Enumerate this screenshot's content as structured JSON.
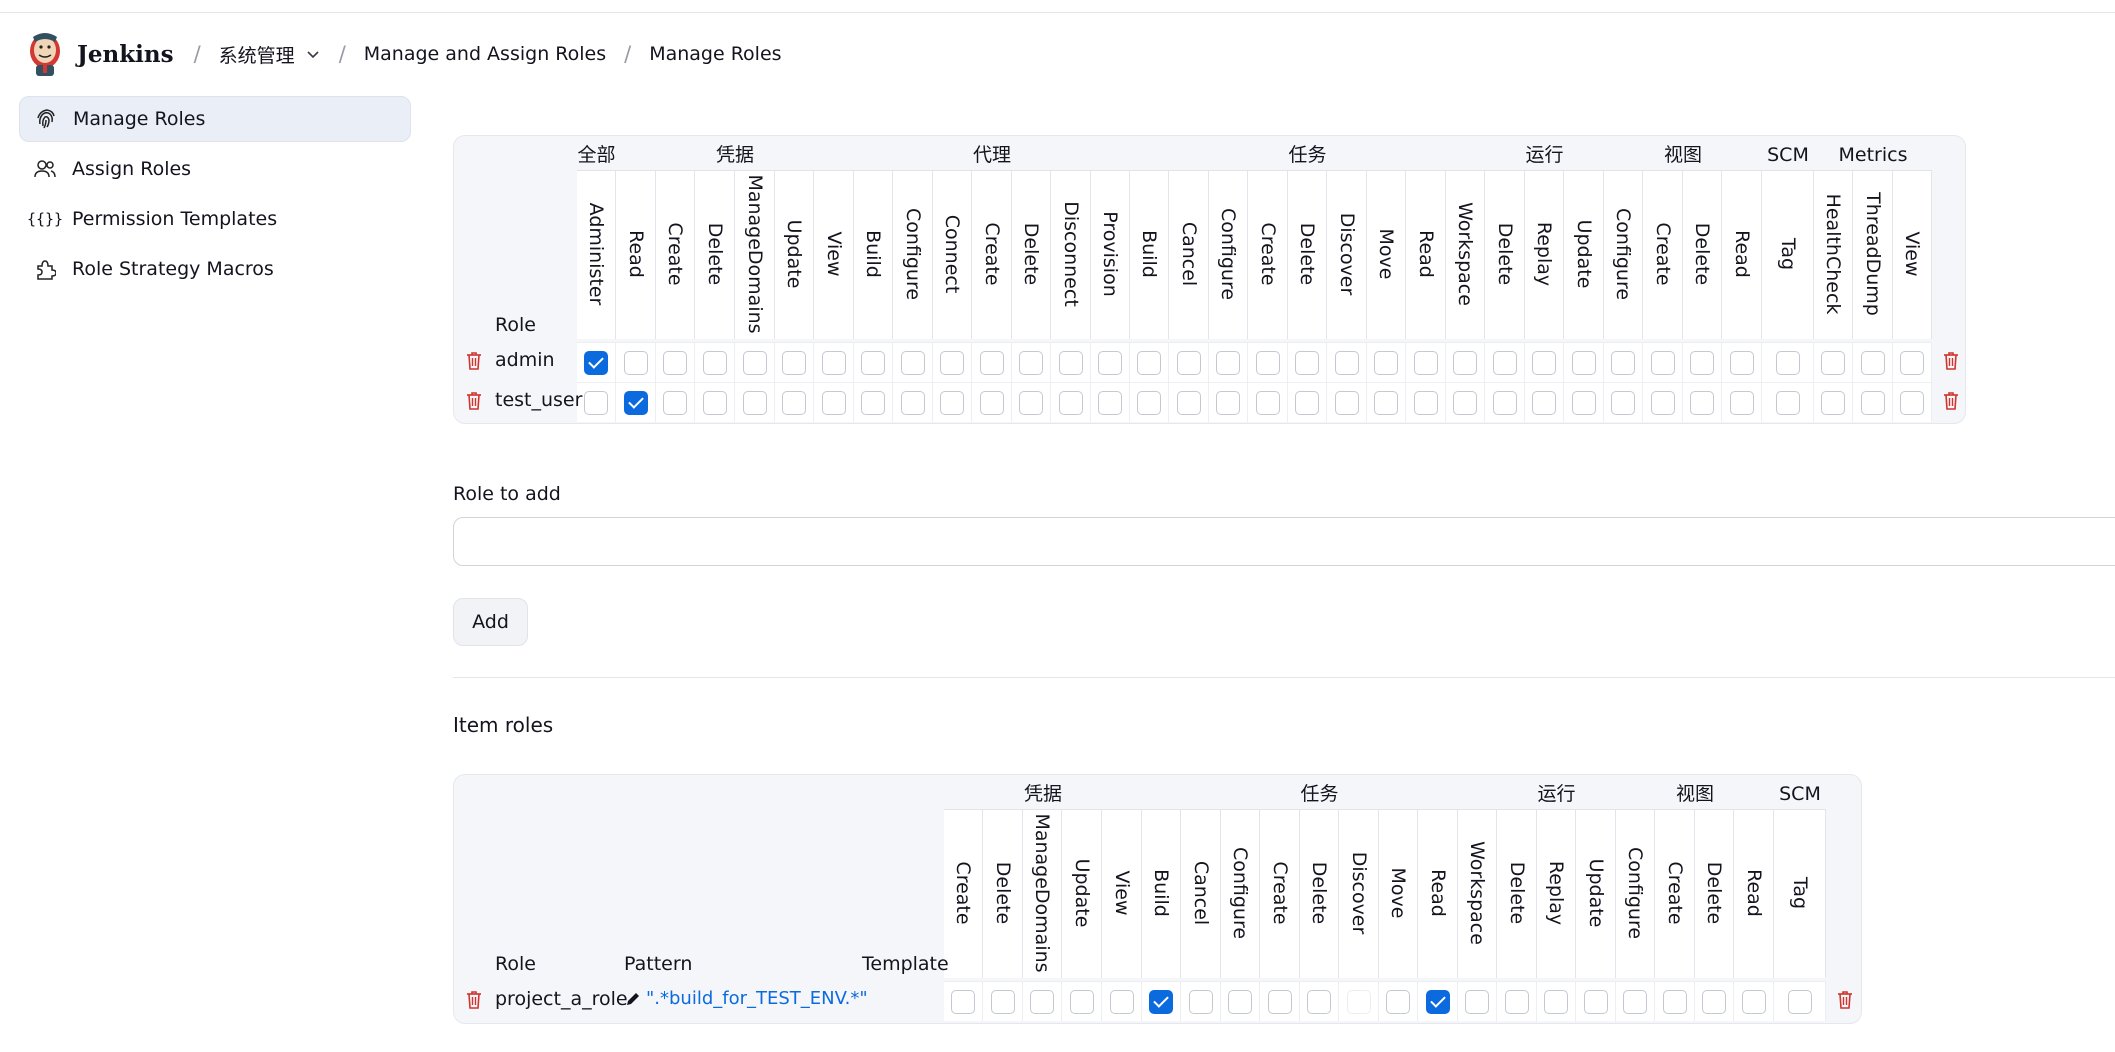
{
  "header": {
    "brand": "Jenkins",
    "breadcrumb": [
      "系统管理",
      "Manage and Assign Roles",
      "Manage Roles"
    ]
  },
  "sidebar": {
    "items": [
      {
        "label": "Manage Roles",
        "icon": "fingerprint-icon",
        "active": true
      },
      {
        "label": "Assign Roles",
        "icon": "users-icon",
        "active": false
      },
      {
        "label": "Permission Templates",
        "icon": "braces-icon",
        "active": false
      },
      {
        "label": "Role Strategy Macros",
        "icon": "puzzle-icon",
        "active": false
      }
    ]
  },
  "global_roles": {
    "role_header": "Role",
    "groups": [
      {
        "name": "全部",
        "permissions": [
          "Administer"
        ]
      },
      {
        "name": "凭据",
        "permissions": [
          "Read",
          "Create",
          "Delete",
          "ManageDomains",
          "Update",
          "View"
        ]
      },
      {
        "name": "代理",
        "permissions": [
          "Build",
          "Configure",
          "Connect",
          "Create",
          "Delete",
          "Disconnect",
          "Provision"
        ]
      },
      {
        "name": "任务",
        "permissions": [
          "Build",
          "Cancel",
          "Configure",
          "Create",
          "Delete",
          "Discover",
          "Move",
          "Read",
          "Workspace"
        ]
      },
      {
        "name": "运行",
        "permissions": [
          "Delete",
          "Replay",
          "Update"
        ]
      },
      {
        "name": "视图",
        "permissions": [
          "Configure",
          "Create",
          "Delete",
          "Read"
        ]
      },
      {
        "name": "SCM",
        "permissions": [
          "Tag"
        ]
      },
      {
        "name": "Metrics",
        "permissions": [
          "HealthCheck",
          "ThreadDump",
          "View"
        ]
      }
    ],
    "rows": [
      {
        "name": "admin",
        "checked": [
          0
        ]
      },
      {
        "name": "test_user",
        "checked": [
          1
        ]
      }
    ]
  },
  "role_to_add": {
    "label": "Role to add",
    "value": "",
    "button": "Add"
  },
  "item_roles": {
    "title": "Item roles",
    "role_header": "Role",
    "pattern_header": "Pattern",
    "template_header": "Template",
    "groups": [
      {
        "name": "凭据",
        "permissions": [
          "Create",
          "Delete",
          "ManageDomains",
          "Update",
          "View"
        ]
      },
      {
        "name": "任务",
        "permissions": [
          "Build",
          "Cancel",
          "Configure",
          "Create",
          "Delete",
          "Discover",
          "Move",
          "Read",
          "Workspace"
        ]
      },
      {
        "name": "运行",
        "permissions": [
          "Delete",
          "Replay",
          "Update"
        ]
      },
      {
        "name": "视图",
        "permissions": [
          "Configure",
          "Create",
          "Delete",
          "Read"
        ]
      },
      {
        "name": "SCM",
        "permissions": [
          "Tag"
        ]
      }
    ],
    "rows": [
      {
        "name": "project_a_role",
        "pattern": "\".*build_for_TEST_ENV.*\"",
        "template": "",
        "checked": [
          5,
          12
        ],
        "disabled": [
          10
        ]
      }
    ]
  },
  "colors": {
    "accent": "#0b6bde",
    "danger": "#d0342c",
    "active_bg": "#e9eef7"
  }
}
